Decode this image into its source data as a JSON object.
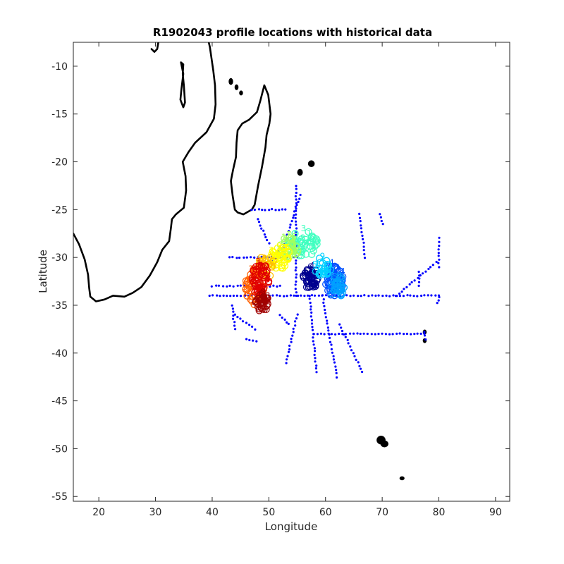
{
  "title": "R1902043 profile locations with historical data",
  "chart_data": {
    "type": "scatter",
    "title": "R1902043 profile locations with historical data",
    "xlabel": "Longitude",
    "ylabel": "Latitude",
    "xlim": [
      15.5,
      92.5
    ],
    "ylim": [
      -55.5,
      -7.5
    ],
    "xticks": [
      20,
      30,
      40,
      50,
      60,
      70,
      80,
      90
    ],
    "yticks": [
      -10,
      -15,
      -20,
      -25,
      -30,
      -35,
      -40,
      -45,
      -50,
      -55
    ],
    "grid": false,
    "historical_color": "#0000ff",
    "coast_color": "#000000",
    "colormap": "jet",
    "historical_tracks": [
      {
        "from": [
          40,
          -33
        ],
        "to": [
          52,
          -33
        ]
      },
      {
        "from": [
          39.5,
          -34.0
        ],
        "to": [
          80,
          -34.0
        ]
      },
      {
        "from": [
          43,
          -30.0
        ],
        "to": [
          55,
          -30.0
        ]
      },
      {
        "from": [
          47,
          -25.0
        ],
        "to": [
          53,
          -25.0
        ]
      },
      {
        "from": [
          54.8,
          -22.5
        ],
        "to": [
          54.8,
          -34
        ]
      },
      {
        "from": [
          52,
          -30
        ],
        "to": [
          55.5,
          -23.5
        ]
      },
      {
        "from": [
          57.2,
          -34
        ],
        "to": [
          58.4,
          -42
        ]
      },
      {
        "from": [
          58,
          -38
        ],
        "to": [
          77.5,
          -38
        ]
      },
      {
        "from": [
          59.5,
          -34
        ],
        "to": [
          62,
          -42.5
        ]
      },
      {
        "from": [
          62.5,
          -37
        ],
        "to": [
          66.5,
          -42
        ]
      },
      {
        "from": [
          72.5,
          -34
        ],
        "to": [
          79.5,
          -30.5
        ]
      },
      {
        "from": [
          77.4,
          -37.8
        ],
        "to": [
          77.6,
          -38.6
        ]
      },
      {
        "from": [
          55,
          -36
        ],
        "to": [
          53,
          -41
        ]
      },
      {
        "from": [
          47.5,
          -37.5
        ],
        "to": [
          44,
          -36
        ]
      },
      {
        "from": [
          52,
          -36
        ],
        "to": [
          53.5,
          -37
        ]
      },
      {
        "from": [
          43.5,
          -35
        ],
        "to": [
          44,
          -37.5
        ]
      },
      {
        "from": [
          46,
          -38.5
        ],
        "to": [
          47.8,
          -38.8
        ]
      },
      {
        "from": [
          50,
          -31
        ],
        "to": [
          52,
          -29
        ]
      },
      {
        "from": [
          66,
          -25.5
        ],
        "to": [
          67,
          -30
        ]
      },
      {
        "from": [
          69.5,
          -25.5
        ],
        "to": [
          70.2,
          -26.5
        ]
      },
      {
        "from": [
          76.5,
          -31.5
        ],
        "to": [
          76.5,
          -33
        ]
      },
      {
        "from": [
          80,
          -28
        ],
        "to": [
          80,
          -31
        ]
      },
      {
        "from": [
          80,
          -34.2
        ],
        "to": [
          79.8,
          -34.8
        ]
      },
      {
        "from": [
          48,
          -26
        ],
        "to": [
          50,
          -28.5
        ]
      }
    ],
    "profile_clusters": [
      {
        "lon": 57.5,
        "lat": -32.2,
        "rx": 1.5,
        "ry": 1.1,
        "color": "#00008f",
        "count": 60
      },
      {
        "lon": 61.5,
        "lat": -32.3,
        "rx": 1.6,
        "ry": 1.8,
        "color": "#0050ff",
        "count": 70
      },
      {
        "lon": 62.0,
        "lat": -33.0,
        "rx": 1.3,
        "ry": 1.3,
        "color": "#00a0ff",
        "count": 40
      },
      {
        "lon": 59.5,
        "lat": -31.0,
        "rx": 1.5,
        "ry": 1.0,
        "color": "#00d0ff",
        "count": 30
      },
      {
        "lon": 56.0,
        "lat": -28.6,
        "rx": 2.8,
        "ry": 1.4,
        "color": "#40ffc0",
        "count": 60
      },
      {
        "lon": 53.5,
        "lat": -29.0,
        "rx": 1.8,
        "ry": 1.2,
        "color": "#a0ff60",
        "count": 40
      },
      {
        "lon": 52.0,
        "lat": -30.0,
        "rx": 1.8,
        "ry": 1.2,
        "color": "#ffff00",
        "count": 50
      },
      {
        "lon": 49.5,
        "lat": -31.0,
        "rx": 1.5,
        "ry": 1.2,
        "color": "#ffc000",
        "count": 35
      },
      {
        "lon": 47.5,
        "lat": -33.0,
        "rx": 1.8,
        "ry": 2.0,
        "color": "#ff6000",
        "count": 60
      },
      {
        "lon": 48.5,
        "lat": -32.3,
        "rx": 1.5,
        "ry": 1.8,
        "color": "#e00000",
        "count": 70
      },
      {
        "lon": 48.8,
        "lat": -34.8,
        "rx": 1.3,
        "ry": 1.0,
        "color": "#a00000",
        "count": 40
      }
    ],
    "land": {
      "africa": [
        [
          15.5,
          -27.5
        ],
        [
          16.5,
          -28.6
        ],
        [
          17.5,
          -30.2
        ],
        [
          18.1,
          -31.8
        ],
        [
          18.3,
          -33.2
        ],
        [
          18.5,
          -34.1
        ],
        [
          19.5,
          -34.6
        ],
        [
          21,
          -34.4
        ],
        [
          22.5,
          -34.0
        ],
        [
          24.5,
          -34.1
        ],
        [
          26,
          -33.7
        ],
        [
          27.5,
          -33.1
        ],
        [
          29,
          -31.9
        ],
        [
          30.3,
          -30.5
        ],
        [
          31.2,
          -29.2
        ],
        [
          32.4,
          -28.3
        ],
        [
          32.7,
          -27.0
        ],
        [
          32.9,
          -26.0
        ],
        [
          33.6,
          -25.5
        ],
        [
          35,
          -24.8
        ],
        [
          35.4,
          -23.0
        ],
        [
          35.3,
          -21.5
        ],
        [
          34.8,
          -20.0
        ],
        [
          35.8,
          -19.0
        ],
        [
          37,
          -18
        ],
        [
          39,
          -16.9
        ],
        [
          40.3,
          -15.5
        ],
        [
          40.6,
          -14
        ],
        [
          40.5,
          -12
        ],
        [
          40.2,
          -10.5
        ],
        [
          39.6,
          -8
        ],
        [
          39.4,
          -7.5
        ]
      ],
      "madagascar": [
        [
          44.0,
          -25.0
        ],
        [
          43.6,
          -23.5
        ],
        [
          43.3,
          -22.0
        ],
        [
          43.7,
          -20.8
        ],
        [
          44.2,
          -19.5
        ],
        [
          44.3,
          -18.0
        ],
        [
          44.5,
          -16.7
        ],
        [
          45.3,
          -16.0
        ],
        [
          46.5,
          -15.6
        ],
        [
          47.9,
          -14.8
        ],
        [
          48.5,
          -13.6
        ],
        [
          49.2,
          -12.0
        ],
        [
          49.9,
          -13.0
        ],
        [
          50.3,
          -15.0
        ],
        [
          50.1,
          -16.0
        ],
        [
          49.6,
          -17.2
        ],
        [
          49.4,
          -18.5
        ],
        [
          48.8,
          -20.5
        ],
        [
          48.1,
          -22.5
        ],
        [
          47.5,
          -24.5
        ],
        [
          47.0,
          -25.0
        ],
        [
          45.5,
          -25.5
        ],
        [
          44.5,
          -25.3
        ],
        [
          44.0,
          -25.0
        ]
      ],
      "lake_tanganyika": [
        [
          29.3,
          -8.2
        ],
        [
          29.8,
          -8.5
        ],
        [
          30.3,
          -8.2
        ],
        [
          30.5,
          -7.5
        ]
      ],
      "lake_malawi": [
        [
          34.5,
          -9.6
        ],
        [
          34.9,
          -10.8
        ],
        [
          34.6,
          -12.3
        ],
        [
          34.4,
          -13.5
        ],
        [
          34.9,
          -14.3
        ],
        [
          35.2,
          -13.8
        ],
        [
          35.0,
          -12.0
        ],
        [
          34.8,
          -10.8
        ],
        [
          34.9,
          -9.8
        ]
      ],
      "islands": [
        {
          "lon": 57.5,
          "lat": -20.2,
          "rx": 0.5,
          "ry": 0.3
        },
        {
          "lon": 55.5,
          "lat": -21.1,
          "rx": 0.4,
          "ry": 0.3
        },
        {
          "lon": 43.3,
          "lat": -11.6,
          "rx": 0.3,
          "ry": 0.3
        },
        {
          "lon": 44.3,
          "lat": -12.2,
          "rx": 0.25,
          "ry": 0.25
        },
        {
          "lon": 45.1,
          "lat": -12.8,
          "rx": 0.2,
          "ry": 0.2
        },
        {
          "lon": 69.8,
          "lat": -49.1,
          "rx": 0.7,
          "ry": 0.4
        },
        {
          "lon": 70.4,
          "lat": -49.5,
          "rx": 0.6,
          "ry": 0.3
        },
        {
          "lon": 73.5,
          "lat": -53.1,
          "rx": 0.35,
          "ry": 0.15
        },
        {
          "lon": 77.5,
          "lat": -37.8,
          "rx": 0.2,
          "ry": 0.2
        },
        {
          "lon": 77.5,
          "lat": -38.7,
          "rx": 0.2,
          "ry": 0.2
        }
      ]
    }
  }
}
